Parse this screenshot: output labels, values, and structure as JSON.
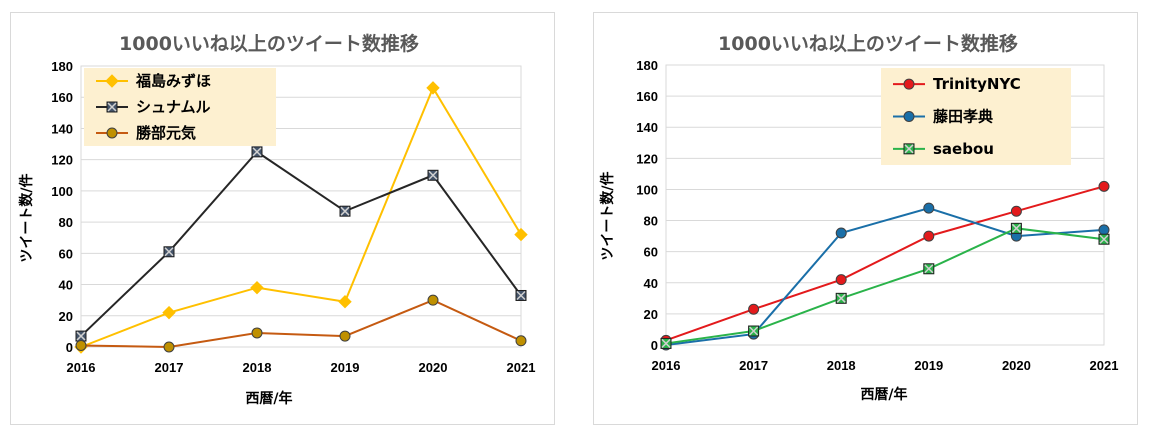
{
  "chart_data": [
    {
      "type": "line",
      "title": "1000いいね以上のツイート数推移",
      "xlabel": "西暦/年",
      "ylabel": "ツイート数/件",
      "x": [
        "2016",
        "2017",
        "2018",
        "2019",
        "2020",
        "2021"
      ],
      "ylim": [
        0,
        180
      ],
      "yticks": [
        "0",
        "20",
        "40",
        "60",
        "80",
        "100",
        "120",
        "140",
        "160",
        "180"
      ],
      "grid": true,
      "legend_position": "top-left",
      "legend_bg": "#fdf0d0",
      "series": [
        {
          "name": "福島みずほ",
          "color": "#ffc000",
          "marker": "diamond",
          "values": [
            0,
            22,
            38,
            29,
            166,
            72
          ]
        },
        {
          "name": "シュナムル",
          "color": "#262626",
          "marker": "xsquare",
          "marker_fill": "#44546a",
          "values": [
            7,
            61,
            125,
            87,
            110,
            33
          ]
        },
        {
          "name": "勝部元気",
          "color": "#c55a11",
          "marker": "circle",
          "marker_fill": "#bf9000",
          "values": [
            1,
            0,
            9,
            7,
            30,
            4
          ]
        }
      ]
    },
    {
      "type": "line",
      "title": "1000いいね以上のツイート数推移",
      "xlabel": "西暦/年",
      "ylabel": "ツイート数/件",
      "x": [
        "2016",
        "2017",
        "2018",
        "2019",
        "2020",
        "2021"
      ],
      "ylim": [
        0,
        180
      ],
      "yticks": [
        "0",
        "20",
        "40",
        "60",
        "80",
        "100",
        "120",
        "140",
        "160",
        "180"
      ],
      "grid": true,
      "legend_position": "top-right",
      "legend_bg": "#fdf0d0",
      "series": [
        {
          "name": "TrinityNYC",
          "color": "#e31a1c",
          "marker": "circle",
          "marker_fill": "#e31a1c",
          "values": [
            3,
            23,
            42,
            70,
            86,
            102
          ]
        },
        {
          "name": "藤田孝典",
          "color": "#1a6fa8",
          "marker": "circle",
          "marker_fill": "#1a6fa8",
          "values": [
            0,
            7,
            72,
            88,
            70,
            74
          ]
        },
        {
          "name": "saebou",
          "color": "#2ab34a",
          "marker": "xsquare",
          "marker_fill": "#2ab34a",
          "values": [
            1,
            9,
            30,
            49,
            75,
            68
          ]
        }
      ]
    }
  ]
}
